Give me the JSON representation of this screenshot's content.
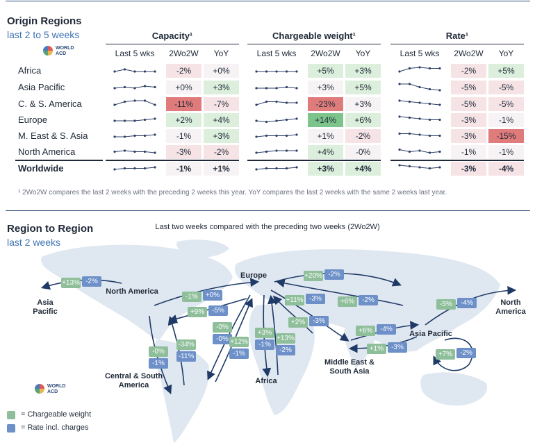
{
  "origin": {
    "title": "Origin Regions",
    "subtitle": "last 2 to 5 weeks",
    "logo_text": "WORLD ACD",
    "groups": [
      {
        "title": "Capacity¹",
        "columns": [
          "Last 5 wks",
          "2Wo2W",
          "YoY"
        ]
      },
      {
        "title": "Chargeable weight¹",
        "columns": [
          "Last 5 wks",
          "2Wo2W",
          "YoY"
        ]
      },
      {
        "title": "Rate¹",
        "columns": [
          "Last 5 wks",
          "2Wo2W",
          "YoY"
        ]
      }
    ],
    "footnote": "¹ 2Wo2W compares the last 2 weeks with the preceding 2 weeks this year. YoY compares the last 2 weeks with the same 2 weeks last year."
  },
  "colors": {
    "strong_red": "#e07b7b",
    "light_red": "#f6e3e6",
    "strong_green": "#7cc48b",
    "light_green": "#dcefdc",
    "neutral": "#f7f3f4"
  },
  "chart_data": [
    {
      "type": "table",
      "rows": [
        {
          "region": "Africa",
          "capacity": {
            "trend": [
              2,
              3,
              2,
              2,
              2
            ],
            "wow": "-2%",
            "yoy": "+0%",
            "wow_tone": "light_red",
            "yoy_tone": "neutral"
          },
          "weight": {
            "trend": [
              2,
              2,
              2,
              2,
              2
            ],
            "wow": "+5%",
            "yoy": "+3%",
            "wow_tone": "light_green",
            "yoy_tone": "light_green"
          },
          "rate": {
            "trend": [
              2,
              3.5,
              4,
              3.5,
              3.5
            ],
            "wow": "-2%",
            "yoy": "+5%",
            "wow_tone": "light_red",
            "yoy_tone": "light_green"
          }
        },
        {
          "region": "Asia Pacific",
          "capacity": {
            "trend": [
              2,
              2.5,
              2,
              3,
              2.5
            ],
            "wow": "+0%",
            "yoy": "+3%",
            "wow_tone": "neutral",
            "yoy_tone": "light_green"
          },
          "weight": {
            "trend": [
              2,
              2,
              2,
              2.5,
              2
            ],
            "wow": "+3%",
            "yoy": "+5%",
            "wow_tone": "neutral",
            "yoy_tone": "light_green"
          },
          "rate": {
            "trend": [
              4,
              4,
              2.5,
              1.5,
              1
            ],
            "wow": "-5%",
            "yoy": "-5%",
            "wow_tone": "light_red",
            "yoy_tone": "light_red"
          }
        },
        {
          "region": "C. & S. America",
          "capacity": {
            "trend": [
              2,
              3.5,
              4,
              4,
              2
            ],
            "wow": "-11%",
            "yoy": "-7%",
            "wow_tone": "strong_red",
            "yoy_tone": "light_red"
          },
          "weight": {
            "trend": [
              2,
              3.5,
              3.5,
              3,
              3
            ],
            "wow": "-23%",
            "yoy": "+3%",
            "wow_tone": "strong_red",
            "yoy_tone": "neutral"
          },
          "rate": {
            "trend": [
              4,
              3.5,
              3,
              2.5,
              2
            ],
            "wow": "-5%",
            "yoy": "-5%",
            "wow_tone": "light_red",
            "yoy_tone": "light_red"
          }
        },
        {
          "region": "Europe",
          "capacity": {
            "trend": [
              2,
              2,
              2,
              2.5,
              3
            ],
            "wow": "+2%",
            "yoy": "+4%",
            "wow_tone": "light_green",
            "yoy_tone": "light_green"
          },
          "weight": {
            "trend": [
              2,
              1.5,
              2,
              2.5,
              3
            ],
            "wow": "+14%",
            "yoy": "+6%",
            "wow_tone": "strong_green",
            "yoy_tone": "light_green"
          },
          "rate": {
            "trend": [
              4,
              3.5,
              3,
              2.5,
              2.5
            ],
            "wow": "-3%",
            "yoy": "-1%",
            "wow_tone": "light_red",
            "yoy_tone": "neutral"
          }
        },
        {
          "region": "M. East & S. Asia",
          "capacity": {
            "trend": [
              2,
              2,
              2.5,
              2.5,
              3
            ],
            "wow": "-1%",
            "yoy": "+3%",
            "wow_tone": "neutral",
            "yoy_tone": "light_green"
          },
          "weight": {
            "trend": [
              2,
              2.5,
              2.5,
              2.5,
              3
            ],
            "wow": "+1%",
            "yoy": "-2%",
            "wow_tone": "neutral",
            "yoy_tone": "light_red"
          },
          "rate": {
            "trend": [
              3.5,
              3.5,
              3,
              2.5,
              2.5
            ],
            "wow": "-3%",
            "yoy": "-15%",
            "wow_tone": "light_red",
            "yoy_tone": "strong_red"
          }
        },
        {
          "region": "North America",
          "capacity": {
            "trend": [
              2.5,
              3,
              2.5,
              2.5,
              2
            ],
            "wow": "-3%",
            "yoy": "-2%",
            "wow_tone": "light_red",
            "yoy_tone": "light_red"
          },
          "weight": {
            "trend": [
              2,
              2.5,
              3,
              3,
              3
            ],
            "wow": "+4%",
            "yoy": "-0%",
            "wow_tone": "light_green",
            "yoy_tone": "neutral"
          },
          "rate": {
            "trend": [
              3.5,
              2.5,
              3,
              2,
              2.5
            ],
            "wow": "-1%",
            "yoy": "-1%",
            "wow_tone": "neutral",
            "yoy_tone": "neutral"
          }
        },
        {
          "region": "Worldwide",
          "capacity": {
            "trend": [
              2,
              2.5,
              2.5,
              2.5,
              3
            ],
            "wow": "-1%",
            "yoy": "+1%",
            "wow_tone": "neutral",
            "yoy_tone": "neutral"
          },
          "weight": {
            "trend": [
              2,
              2.5,
              2.5,
              2.5,
              3
            ],
            "wow": "+3%",
            "yoy": "+4%",
            "wow_tone": "light_green",
            "yoy_tone": "light_green"
          },
          "rate": {
            "trend": [
              4,
              3.5,
              3,
              2.5,
              3
            ],
            "wow": "-3%",
            "yoy": "-4%",
            "wow_tone": "light_red",
            "yoy_tone": "light_red"
          }
        }
      ]
    }
  ],
  "region_to_region": {
    "title": "Region to Region",
    "subtitle": "last 2 weeks",
    "note": "Last two weeks compared with the preceding two weeks (2Wo2W)",
    "logo_text": "WORLD ACD",
    "regions": {
      "europe": "Europe",
      "north_america_left": "North America",
      "asia_pacific_left": "Asia Pacific",
      "north_america_right": "North America",
      "asia_pacific_right": "Asia Pacific",
      "central_south_america": "Central & South America",
      "africa": "Africa",
      "middle_east_south_asia": "Middle East & South Asia"
    },
    "flows": [
      {
        "weight": "+13%",
        "rate": "-2%"
      },
      {
        "weight": "-1%",
        "rate": "+0%"
      },
      {
        "weight": "+9%",
        "rate": "-5%"
      },
      {
        "weight": "+20%",
        "rate": "-2%"
      },
      {
        "weight": "+6%",
        "rate": "-2%"
      },
      {
        "weight": "-5%",
        "rate": "-4%"
      },
      {
        "weight": "+11%",
        "rate": "-3%"
      },
      {
        "weight": "+2%",
        "rate": "-3%"
      },
      {
        "weight": "+6%",
        "rate": "-4%"
      },
      {
        "weight": "+1%",
        "rate": "-3%"
      },
      {
        "weight": "+7%",
        "rate": "-2%"
      },
      {
        "weight": "-0%",
        "rate": "-0%"
      },
      {
        "weight": "-0%",
        "rate": "-1%"
      },
      {
        "weight": "-34%",
        "rate": "-11%"
      },
      {
        "weight": "+12%",
        "rate": "-1%"
      },
      {
        "weight": "+3%",
        "rate": "-1%"
      },
      {
        "weight": "+13%",
        "rate": "-2%"
      }
    ],
    "legend": [
      {
        "label": "= Chargeable weight",
        "color": "#8fbf9a"
      },
      {
        "label": "= Rate incl. charges",
        "color": "#6d90c9"
      }
    ]
  }
}
